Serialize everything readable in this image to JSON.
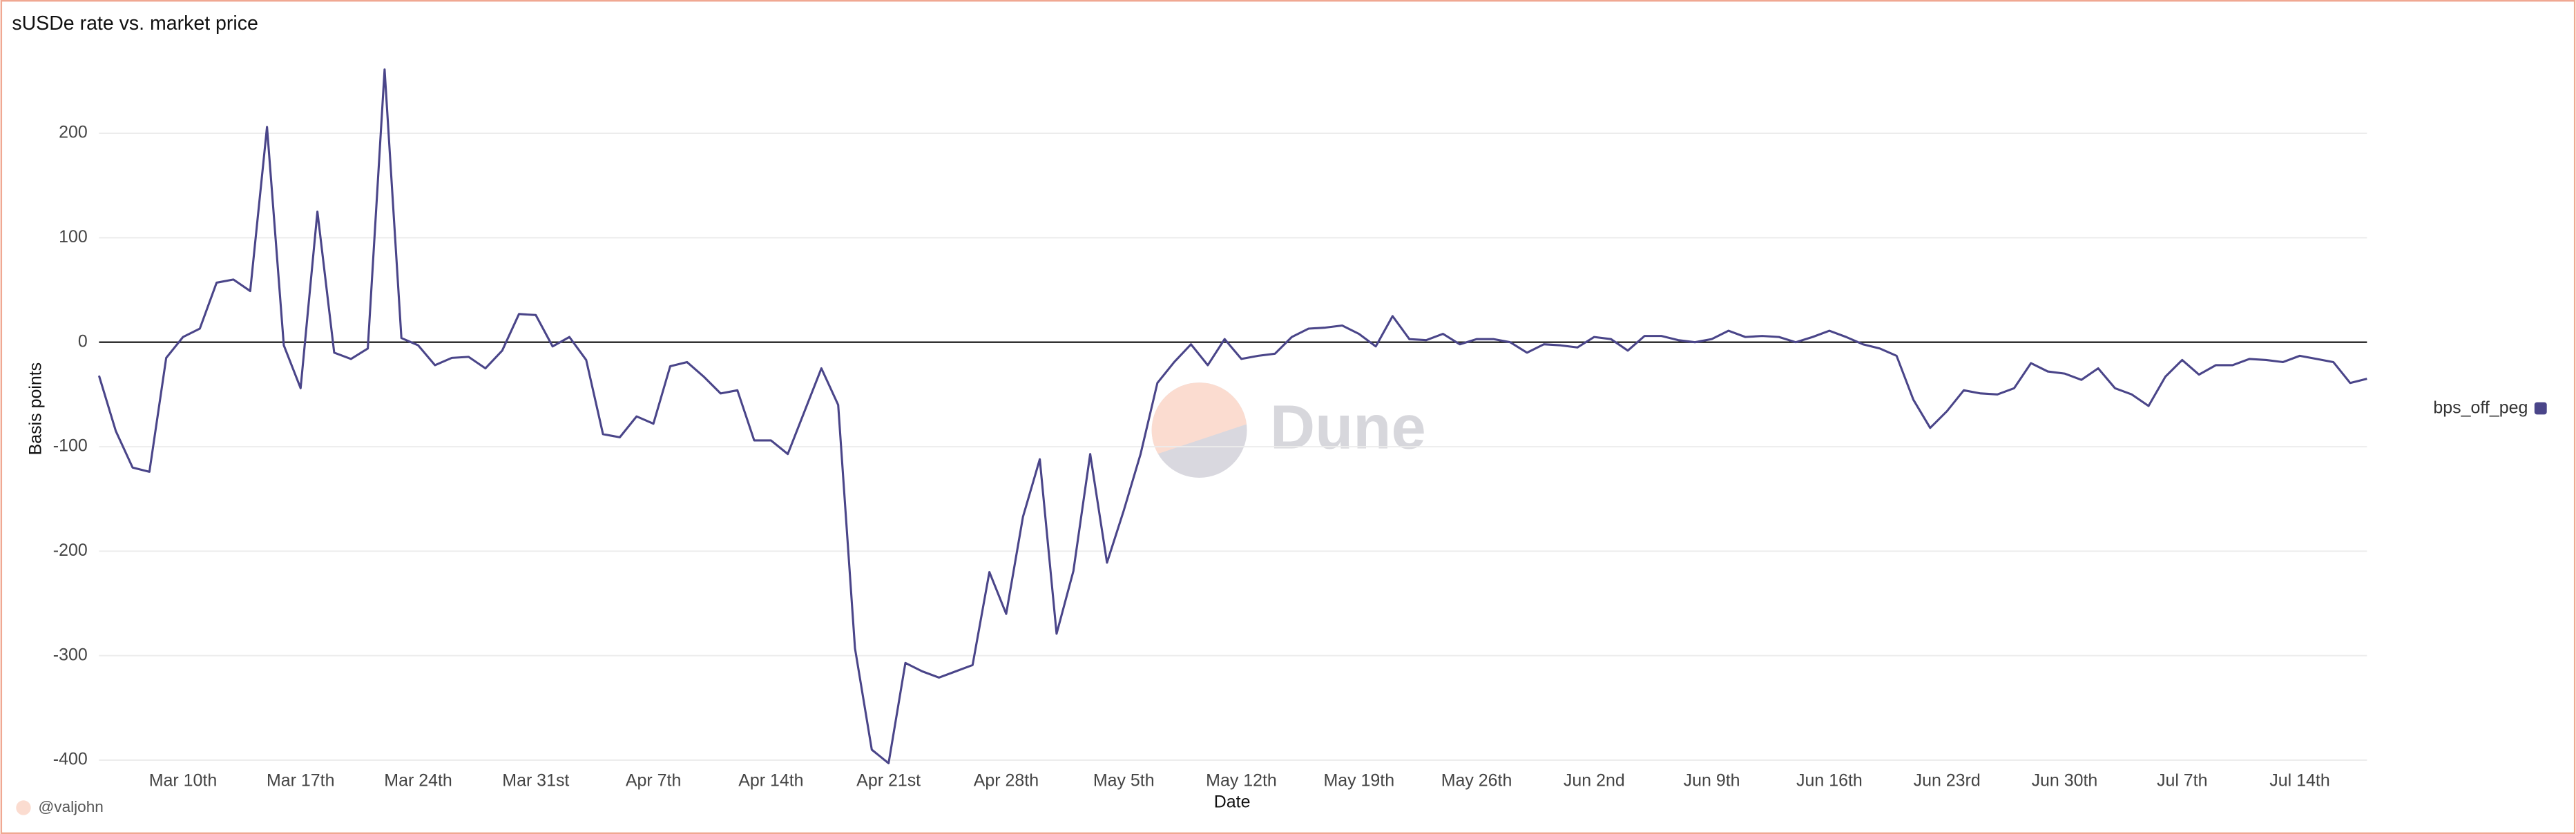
{
  "chart_data": {
    "type": "line",
    "title": "sUSDe rate vs. market price",
    "x_label": "Date",
    "y_label": "Basis points",
    "watermark": "Dune",
    "footer": "@valjohn",
    "categories": [
      null,
      null,
      null,
      null,
      null,
      "Mar 10th",
      null,
      null,
      null,
      null,
      null,
      null,
      "Mar 17th",
      null,
      null,
      null,
      null,
      null,
      null,
      "Mar 24th",
      null,
      null,
      null,
      null,
      null,
      null,
      "Mar 31st",
      null,
      null,
      null,
      null,
      null,
      null,
      "Apr 7th",
      null,
      null,
      null,
      null,
      null,
      null,
      "Apr 14th",
      null,
      null,
      null,
      null,
      null,
      null,
      "Apr 21st",
      null,
      null,
      null,
      null,
      null,
      null,
      "Apr 28th",
      null,
      null,
      null,
      null,
      null,
      null,
      "May 5th",
      null,
      null,
      null,
      null,
      null,
      null,
      "May 12th",
      null,
      null,
      null,
      null,
      null,
      null,
      "May 19th",
      null,
      null,
      null,
      null,
      null,
      null,
      "May 26th",
      null,
      null,
      null,
      null,
      null,
      null,
      "Jun 2nd",
      null,
      null,
      null,
      null,
      null,
      null,
      "Jun 9th",
      null,
      null,
      null,
      null,
      null,
      null,
      "Jun 16th",
      null,
      null,
      null,
      null,
      null,
      null,
      "Jun 23rd",
      null,
      null,
      null,
      null,
      null,
      null,
      "Jun 30th",
      null,
      null,
      null,
      null,
      null,
      null,
      "Jul 7th",
      null,
      null,
      null,
      null,
      null,
      null,
      "Jul 14th",
      null,
      null,
      null,
      null
    ],
    "series": [
      {
        "name": "bps_off_peg",
        "color": "#4a4589",
        "values": [
          -32,
          -85,
          -120,
          -124,
          -15,
          5,
          13,
          57,
          60,
          49,
          206,
          -3,
          -44,
          125,
          -10,
          -16,
          -6,
          261,
          4,
          -3,
          -22,
          -15,
          -14,
          -25,
          -8,
          27,
          26,
          -4,
          5,
          -17,
          -88,
          -91,
          -71,
          -78,
          -23,
          -19,
          -33,
          -49,
          -46,
          -94,
          -94,
          -107,
          -66,
          -25,
          -60,
          -293,
          -390,
          -403,
          -307,
          -315,
          -321,
          -315,
          -309,
          -220,
          -260,
          -167,
          -112,
          -279,
          -219,
          -107,
          -211,
          -161,
          -107,
          -39,
          -19,
          -2,
          -22,
          3,
          -16,
          -13,
          -11,
          5,
          13,
          14,
          16,
          8,
          -4,
          25,
          3,
          2,
          8,
          -2,
          3,
          3,
          0,
          -10,
          -2,
          -3,
          -5,
          5,
          3,
          -8,
          6,
          6,
          2,
          0,
          3,
          11,
          5,
          6,
          5,
          0,
          5,
          11,
          5,
          -2,
          -6,
          -13,
          -55,
          -82,
          -66,
          -46,
          -49,
          -50,
          -44,
          -20,
          -28,
          -30,
          -36,
          -25,
          -44,
          -50,
          -61,
          -33,
          -17,
          -31,
          -22,
          -22,
          -16,
          -17,
          -19,
          -13,
          -16,
          -19,
          -39,
          -35
        ]
      }
    ],
    "ylim": [
      -400,
      271
    ],
    "yticks": [
      -400,
      -300,
      -200,
      -100,
      0,
      100,
      200
    ],
    "grid": true,
    "legend": "right"
  }
}
